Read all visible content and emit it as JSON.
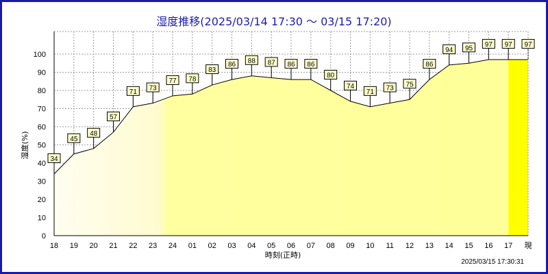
{
  "colors": {
    "frame": "#1a1aa8",
    "title": "#1c1cb4",
    "fill_light": "#fffde0",
    "fill_mid": "#ffff99",
    "fill_current": "#ffff00",
    "label_bg": "#ffffcc",
    "grid": "#999999"
  },
  "chart_data": {
    "type": "area",
    "title": "湿度推移(2025/03/14 17:30 ～ 03/15 17:20)",
    "xlabel": "時刻(正時)",
    "ylabel": "湿度(%)",
    "ylim": [
      0,
      100
    ],
    "yticks": [
      0,
      10,
      20,
      30,
      40,
      50,
      60,
      70,
      80,
      90,
      100
    ],
    "grid": true,
    "categories": [
      "18",
      "19",
      "20",
      "21",
      "22",
      "23",
      "24",
      "01",
      "02",
      "03",
      "04",
      "05",
      "06",
      "07",
      "08",
      "09",
      "10",
      "11",
      "12",
      "13",
      "14",
      "15",
      "16",
      "17",
      "現"
    ],
    "values": [
      34,
      45,
      48,
      57,
      71,
      73,
      77,
      78,
      83,
      86,
      88,
      87,
      86,
      86,
      80,
      74,
      71,
      73,
      75,
      86,
      94,
      95,
      97,
      97,
      97
    ]
  },
  "timestamp": "2025/03/15 17:30:31"
}
